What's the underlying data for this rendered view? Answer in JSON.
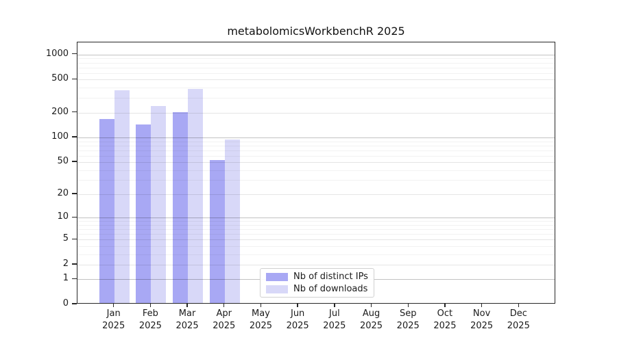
{
  "title": "metabolomicsWorkbenchR 2025",
  "chart_data": {
    "type": "bar",
    "title": "metabolomicsWorkbenchR 2025",
    "y_scale": "log1p",
    "ylim": [
      0,
      1400
    ],
    "grid": true,
    "legend_position": "bottom-center-inside",
    "categories": [
      "Jan",
      "Feb",
      "Mar",
      "Apr",
      "May",
      "Jun",
      "Jul",
      "Aug",
      "Sep",
      "Oct",
      "Nov",
      "Dec"
    ],
    "category_year": "2025",
    "y_ticks": [
      1000,
      500,
      200,
      100,
      50,
      20,
      10,
      5,
      2,
      1,
      0
    ],
    "y_minor_gridlines": [
      3,
      4,
      6,
      7,
      8,
      9,
      30,
      40,
      60,
      70,
      80,
      90,
      300,
      400,
      600,
      700,
      800,
      900
    ],
    "series": [
      {
        "name": "Nb of distinct IPs",
        "color": "#a8a8f4",
        "values": [
          162,
          138,
          196,
          51,
          null,
          null,
          null,
          null,
          null,
          null,
          null,
          null
        ]
      },
      {
        "name": "Nb of downloads",
        "color": "#d8d8f8",
        "values": [
          355,
          230,
          370,
          91,
          null,
          null,
          null,
          null,
          null,
          null,
          null,
          null
        ]
      }
    ]
  },
  "legend": {
    "items": [
      {
        "label": "Nb of distinct IPs",
        "color": "#a8a8f4"
      },
      {
        "label": "Nb of downloads",
        "color": "#d8d8f8"
      }
    ]
  }
}
